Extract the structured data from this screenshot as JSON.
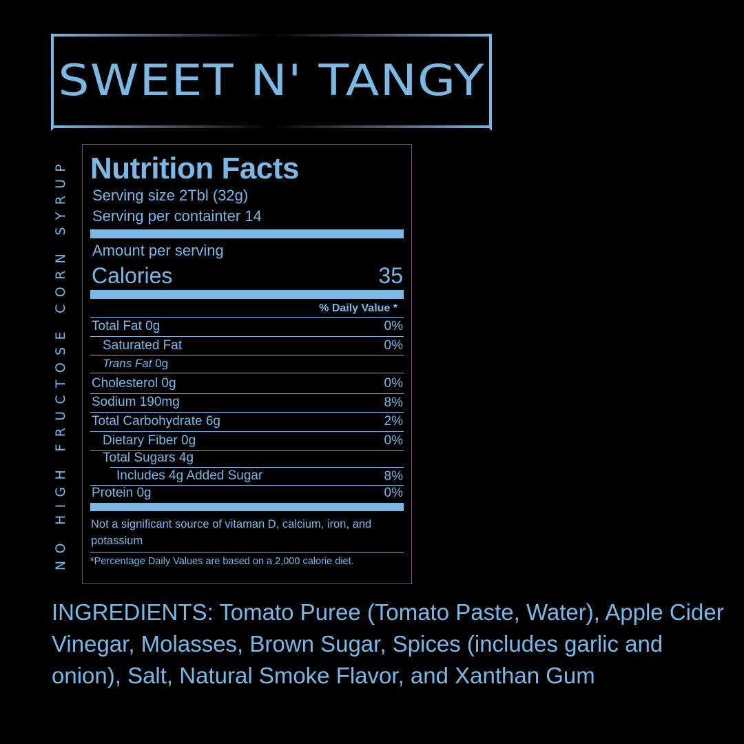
{
  "title": "SWEET N' TANGY",
  "side_text": "NO HIGH FRUCTOSE CORN SYRUP",
  "nutrition": {
    "heading": "Nutrition Facts",
    "serving_size": "Serving size 2Tbl (32g)",
    "servings_per_container": "Serving per containter 14",
    "amount_per_serving": "Amount per serving",
    "calories_label": "Calories",
    "calories_value": "35",
    "daily_value_header": "% Daily Value *",
    "rows": [
      {
        "label": "Total Fat 0g",
        "dv": "0%"
      },
      {
        "label": "Saturated Fat",
        "dv": "0%"
      },
      {
        "label_italic": "Trans Fat",
        "label": " 0g",
        "dv": ""
      },
      {
        "label": "Cholesterol 0g",
        "dv": "0%"
      },
      {
        "label": "Sodium 190mg",
        "dv": "8%"
      },
      {
        "label": "Total Carbohydrate 6g",
        "dv": "2%"
      },
      {
        "label": "Dietary Fiber 0g",
        "dv": "0%"
      },
      {
        "label": "Total Sugars 4g",
        "dv": ""
      },
      {
        "label": "Includes 4g Added Sugar",
        "dv": "8%"
      },
      {
        "label": "Protein 0g",
        "dv": "0%"
      }
    ],
    "note": "Not a significant source of vitaman D, calcium, iron, and potassium",
    "footnote": "*Percentage Daily Values are based on a 2,000 calorie diet."
  },
  "ingredients": "INGREDIENTS: Tomato Puree (Tomato Paste, Water), Apple Cider Vinegar, Molasses, Brown Sugar, Spices (includes garlic and onion), Salt, Natural Smoke Flavor, and Xanthan Gum",
  "colors": {
    "accent": "#7ab8e6",
    "background": "#000000"
  }
}
